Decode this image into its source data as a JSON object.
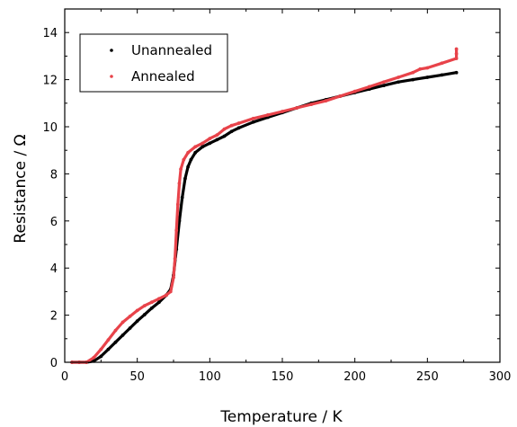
{
  "chart_data": {
    "type": "scatter",
    "xlabel": "Temperature / K",
    "ylabel": "Resistance / Ω",
    "xlim": [
      0,
      300
    ],
    "ylim": [
      0,
      15
    ],
    "x_ticks": [
      0,
      50,
      100,
      150,
      200,
      250,
      300
    ],
    "y_ticks": [
      0,
      2,
      4,
      6,
      8,
      10,
      12,
      14
    ],
    "x_tick_labels": [
      "0",
      "50",
      "100",
      "150",
      "200",
      "250",
      "300"
    ],
    "y_tick_labels": [
      "0",
      "2",
      "4",
      "6",
      "8",
      "10",
      "12",
      "14"
    ],
    "grid": false,
    "legend_position": "top-left",
    "series": [
      {
        "name": "Unannealed",
        "color": "#000000",
        "x": [
          5,
          10,
          15,
          20,
          25,
          30,
          35,
          40,
          45,
          50,
          55,
          60,
          65,
          70,
          73,
          75,
          77,
          79,
          81,
          83,
          85,
          87,
          90,
          95,
          100,
          105,
          110,
          115,
          120,
          130,
          140,
          150,
          160,
          170,
          180,
          190,
          200,
          210,
          220,
          230,
          240,
          250,
          260,
          270
        ],
        "y": [
          0.0,
          0.0,
          0.0,
          0.05,
          0.25,
          0.55,
          0.85,
          1.15,
          1.45,
          1.75,
          2.02,
          2.3,
          2.55,
          2.85,
          3.1,
          3.7,
          4.8,
          6.0,
          7.0,
          7.8,
          8.3,
          8.6,
          8.9,
          9.15,
          9.3,
          9.45,
          9.6,
          9.8,
          9.95,
          10.2,
          10.4,
          10.6,
          10.8,
          11.0,
          11.15,
          11.3,
          11.45,
          11.6,
          11.75,
          11.9,
          12.0,
          12.1,
          12.2,
          12.3
        ]
      },
      {
        "name": "Annealed",
        "color": "#e8434a",
        "x": [
          5,
          10,
          15,
          20,
          25,
          30,
          35,
          40,
          45,
          50,
          55,
          60,
          65,
          70,
          73,
          75,
          76,
          77,
          78,
          79,
          80,
          82,
          85,
          90,
          95,
          100,
          105,
          110,
          115,
          120,
          130,
          140,
          150,
          160,
          170,
          180,
          190,
          200,
          210,
          220,
          230,
          240,
          245,
          250,
          260,
          270,
          270,
          270
        ],
        "y": [
          0.0,
          0.0,
          0.0,
          0.2,
          0.55,
          0.95,
          1.35,
          1.7,
          1.95,
          2.2,
          2.4,
          2.55,
          2.7,
          2.85,
          3.0,
          3.6,
          4.4,
          5.6,
          6.7,
          7.6,
          8.2,
          8.6,
          8.9,
          9.15,
          9.3,
          9.5,
          9.65,
          9.9,
          10.05,
          10.15,
          10.35,
          10.5,
          10.65,
          10.8,
          10.95,
          11.1,
          11.3,
          11.5,
          11.7,
          11.9,
          12.1,
          12.3,
          12.45,
          12.5,
          12.7,
          12.9,
          13.1,
          13.3
        ]
      }
    ]
  }
}
